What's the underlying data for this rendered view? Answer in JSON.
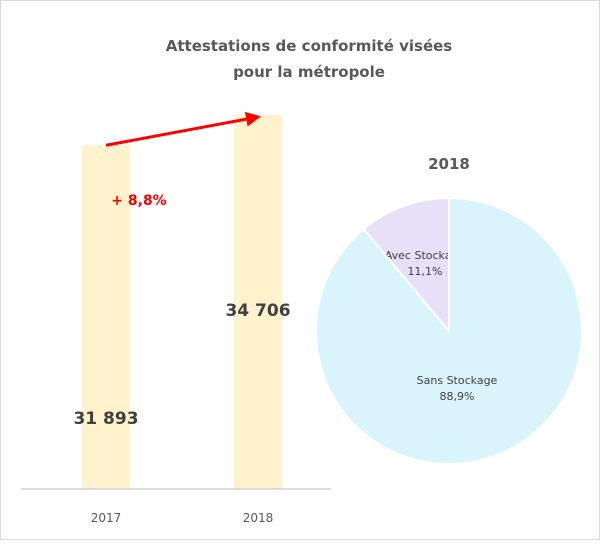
{
  "chart_data": [
    {
      "type": "bar",
      "title_line1": "Attestations de conformité visées",
      "title_line2": "pour la métropole",
      "categories": [
        "2017",
        "2018"
      ],
      "values": [
        31893,
        34706
      ],
      "value_labels": [
        "31 893",
        "34 706"
      ],
      "growth_label": "+ 8,8%",
      "ylim": [
        0,
        36000
      ],
      "bar_color": "#fff2cc",
      "arrow_color": "#ff0000",
      "grid": false
    },
    {
      "type": "pie",
      "title": "2018",
      "slices": [
        {
          "name": "Avec Stockage",
          "value": 11.1,
          "value_label": "11,1%",
          "color": "#e6e0f8"
        },
        {
          "name": "Sans Stockage",
          "value": 88.9,
          "value_label": "88,9%",
          "color": "#daf4fb"
        }
      ]
    }
  ]
}
